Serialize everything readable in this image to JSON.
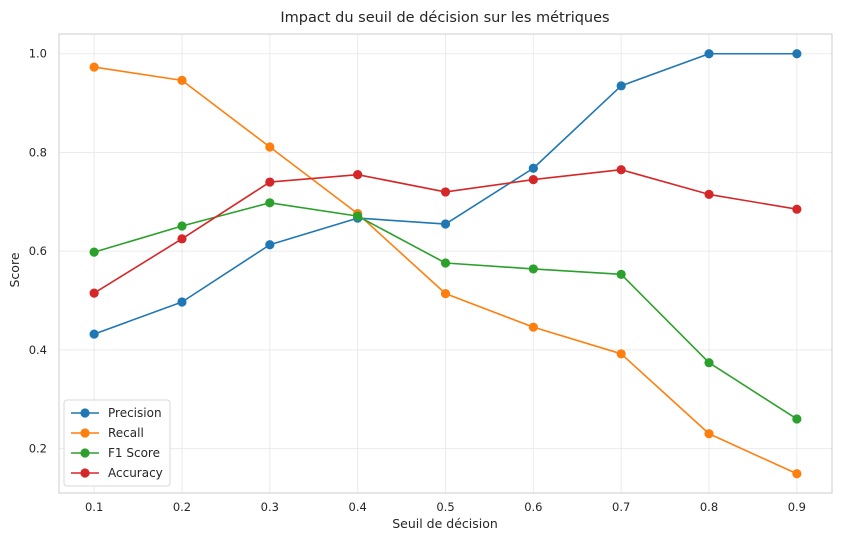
{
  "chart_data": {
    "type": "line",
    "title": "Impact du seuil de décision sur les métriques",
    "xlabel": "Seuil de décision",
    "ylabel": "Score",
    "x": [
      0.1,
      0.2,
      0.3,
      0.4,
      0.5,
      0.6,
      0.7,
      0.8,
      0.9
    ],
    "x_tick_labels": [
      "0.1",
      "0.2",
      "0.3",
      "0.4",
      "0.5",
      "0.6",
      "0.7",
      "0.8",
      "0.9"
    ],
    "y_ticks": [
      0.2,
      0.4,
      0.6,
      0.8,
      1.0
    ],
    "y_tick_labels": [
      "0.2",
      "0.4",
      "0.6",
      "0.8",
      "1.0"
    ],
    "xlim": [
      0.06,
      0.94
    ],
    "ylim": [
      0.11,
      1.04
    ],
    "grid": true,
    "legend_position": "lower-left",
    "series": [
      {
        "name": "Precision",
        "color": "#1f77b4",
        "values": [
          0.432,
          0.497,
          0.613,
          0.667,
          0.655,
          0.768,
          0.935,
          1.0,
          1.0
        ]
      },
      {
        "name": "Recall",
        "color": "#ff7f0e",
        "values": [
          0.973,
          0.946,
          0.811,
          0.676,
          0.514,
          0.446,
          0.392,
          0.23,
          0.149
        ]
      },
      {
        "name": "F1 Score",
        "color": "#2ca02c",
        "values": [
          0.598,
          0.651,
          0.698,
          0.671,
          0.576,
          0.564,
          0.553,
          0.374,
          0.26
        ]
      },
      {
        "name": "Accuracy",
        "color": "#d62728",
        "values": [
          0.515,
          0.625,
          0.74,
          0.755,
          0.72,
          0.745,
          0.765,
          0.715,
          0.685
        ]
      }
    ]
  }
}
